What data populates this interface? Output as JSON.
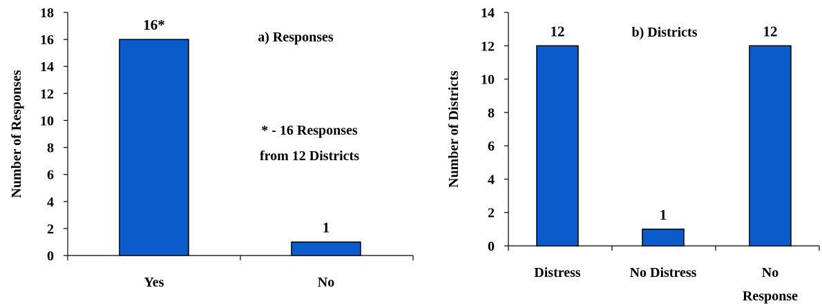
{
  "chart_data": [
    {
      "type": "bar",
      "categories": [
        [
          "Yes"
        ],
        [
          "No"
        ]
      ],
      "values": [
        16,
        1
      ],
      "data_labels": [
        "16*",
        "1"
      ],
      "title": "a) Responses",
      "annotation_lines": [
        "* - 16 Responses",
        "from 12 Districts"
      ],
      "ylabel": "Number of Responses",
      "ylim": [
        0,
        18
      ],
      "yticks": [
        0,
        2,
        4,
        6,
        8,
        10,
        12,
        14,
        16,
        18
      ],
      "bar_color": "#0a5ccc",
      "grid": false
    },
    {
      "type": "bar",
      "categories": [
        [
          "Distress"
        ],
        [
          "No Distress"
        ],
        [
          "No",
          "Response"
        ]
      ],
      "values": [
        12,
        1,
        12
      ],
      "data_labels": [
        "12",
        "1",
        "12"
      ],
      "title": "b) Districts",
      "ylabel": "Number of Districts",
      "ylim": [
        0,
        14
      ],
      "yticks": [
        0,
        2,
        4,
        6,
        8,
        10,
        12,
        14
      ],
      "bar_color": "#0a5ccc",
      "grid": false
    }
  ]
}
